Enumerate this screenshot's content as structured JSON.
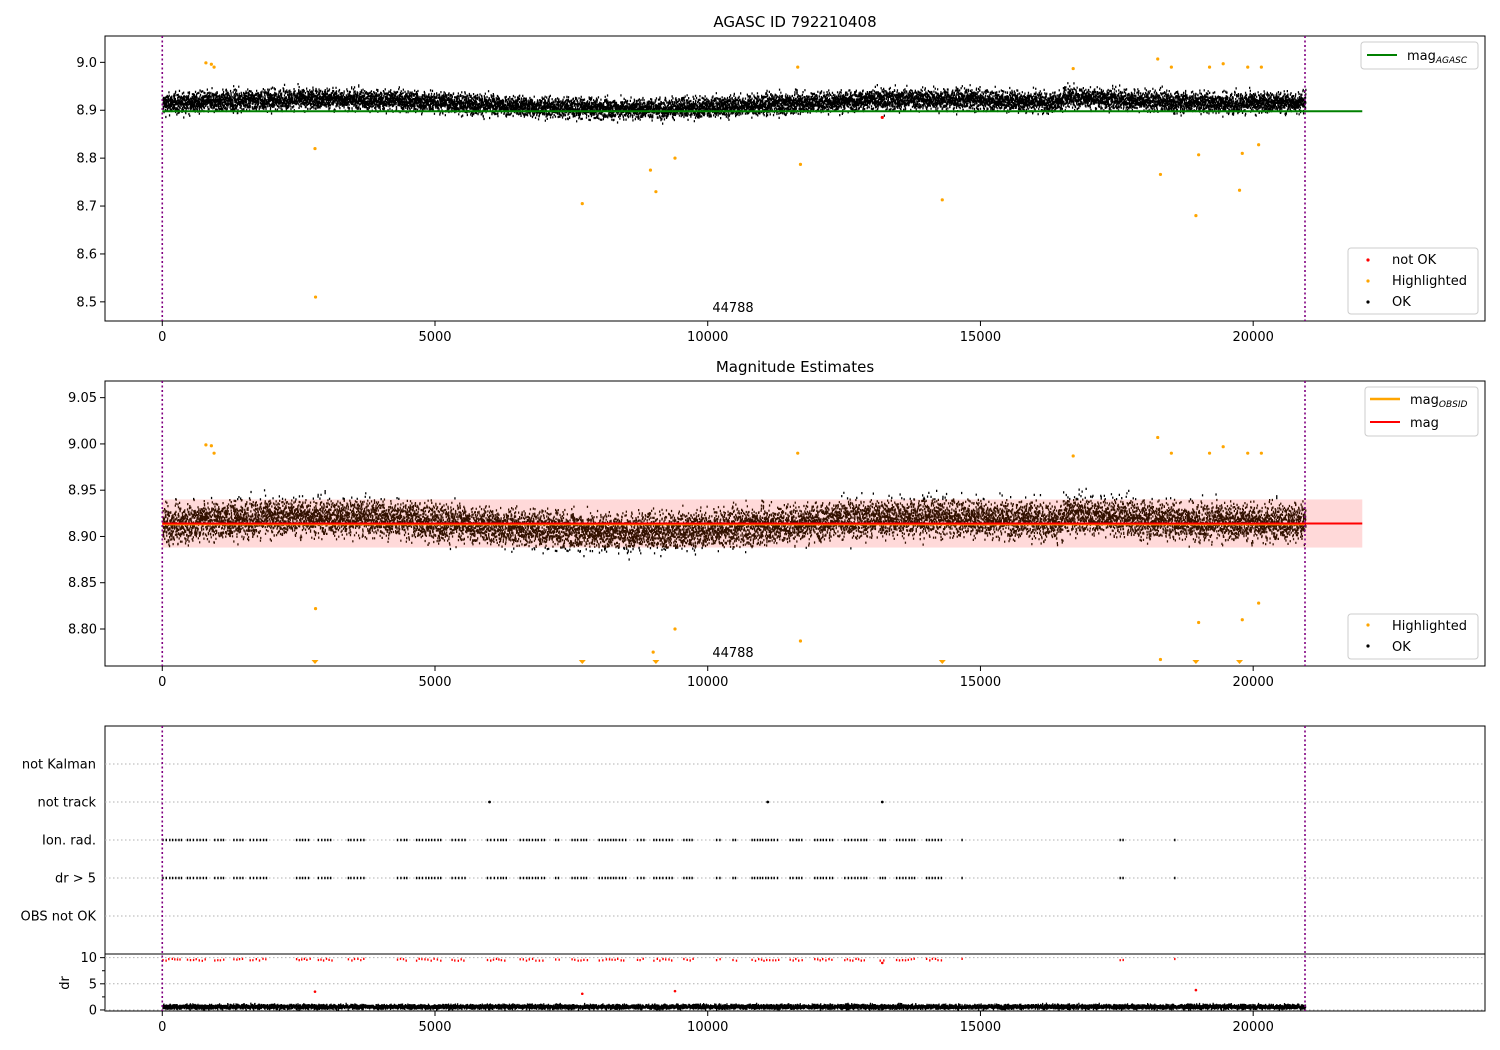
{
  "chart_data": [
    {
      "type": "scatter",
      "title": "AGASC ID 792210408",
      "xlim": [
        -1050,
        24250
      ],
      "ylim": [
        8.46,
        9.055
      ],
      "x_ticks": [
        0,
        5000,
        10000,
        15000,
        20000
      ],
      "y_ticks": [
        8.5,
        8.6,
        8.7,
        8.8,
        8.9,
        9.0
      ],
      "y_tick_labels": [
        "8.5",
        "8.6",
        "8.7",
        "8.8",
        "8.9",
        "9.0"
      ],
      "vlines": [
        0,
        20950
      ],
      "annotation": "44788",
      "annotation_x": 10300,
      "reference_line": {
        "name": "mag_AGASC",
        "y": 8.898,
        "x_range": [
          0,
          22000
        ],
        "color": "#008000"
      },
      "ok_band": {
        "x_range": [
          0,
          20950
        ],
        "center": 8.913,
        "halfwidth": 0.03,
        "low_extent": 0.06,
        "high_extent": 0.065
      },
      "series": [
        {
          "name": "not OK",
          "color": "#ff0000",
          "x": [
            13200
          ],
          "y": [
            8.885
          ]
        },
        {
          "name": "Highlighted",
          "color": "#ffa500",
          "x": [
            800,
            900,
            950,
            2800,
            2810,
            7700,
            8950,
            9050,
            9400,
            11650,
            11700,
            14300,
            16700,
            18250,
            18300,
            18500,
            18950,
            19000,
            19200,
            19450,
            19750,
            19800,
            19900,
            20100,
            20150
          ],
          "y": [
            8.999,
            8.996,
            8.99,
            8.82,
            8.51,
            8.705,
            8.775,
            8.73,
            8.8,
            8.99,
            8.787,
            8.713,
            8.987,
            9.007,
            8.766,
            8.99,
            8.68,
            8.807,
            8.99,
            8.997,
            8.733,
            8.81,
            8.99,
            8.828,
            8.99
          ]
        },
        {
          "name": "OK",
          "color": "#000000",
          "x": [],
          "y": []
        }
      ],
      "legend_top": [
        "mag_AGASC"
      ],
      "legend_bottom": [
        "not OK",
        "Highlighted",
        "OK"
      ]
    },
    {
      "type": "scatter",
      "title": "Magnitude Estimates",
      "xlim": [
        -1050,
        24250
      ],
      "ylim": [
        8.76,
        9.068
      ],
      "x_ticks": [
        0,
        5000,
        10000,
        15000,
        20000
      ],
      "y_ticks": [
        8.8,
        8.85,
        8.9,
        8.95,
        9.0,
        9.05
      ],
      "y_tick_labels": [
        "8.80",
        "8.85",
        "8.90",
        "8.95",
        "9.00",
        "9.05"
      ],
      "vlines": [
        0,
        20950
      ],
      "annotation": "44788",
      "annotation_x": 10300,
      "mag_line": {
        "name": "mag",
        "y": 8.914,
        "x_range": [
          0,
          22000
        ],
        "color": "#ff0000"
      },
      "mag_band": {
        "y_range": [
          8.888,
          8.94
        ],
        "x_range": [
          0,
          22000
        ],
        "color": "#ffcccc"
      },
      "obsid_line": {
        "name": "mag_OBSID",
        "y": 8.913,
        "x_range": [
          0,
          20950
        ],
        "color": "#ffa500"
      },
      "series": [
        {
          "name": "Highlighted",
          "color": "#ffa500",
          "x": [
            800,
            900,
            950,
            2810,
            9000,
            9400,
            11700,
            11650,
            16700,
            18250,
            18300,
            18500,
            19000,
            19200,
            19450,
            19800,
            19900,
            20100,
            20150
          ],
          "y": [
            8.999,
            8.998,
            8.99,
            8.822,
            8.775,
            8.8,
            8.787,
            8.99,
            8.987,
            9.007,
            8.767,
            8.99,
            8.807,
            8.99,
            8.997,
            8.81,
            8.99,
            8.828,
            8.99
          ]
        },
        {
          "name": "OK",
          "color": "#000000",
          "x": [],
          "y": []
        }
      ],
      "below_range_markers_x": [
        2800,
        7700,
        9050,
        14300,
        18950,
        19750
      ],
      "legend_top": [
        "mag_OBSID",
        "mag"
      ],
      "legend_bottom": [
        "Highlighted",
        "OK"
      ]
    },
    {
      "type": "scatter",
      "xlim": [
        -1050,
        24250
      ],
      "x_ticks": [
        0,
        5000,
        10000,
        15000,
        20000
      ],
      "vlines": [
        0,
        20950
      ],
      "flag_labels": [
        "not Kalman",
        "not track",
        "Ion. rad.",
        "dr > 5",
        "OBS not OK"
      ],
      "not_track_x": [
        6000,
        11100,
        13200
      ],
      "flag_clusters_x": [
        [
          0,
          350
        ],
        [
          450,
          800
        ],
        [
          950,
          1150
        ],
        [
          1300,
          1500
        ],
        [
          1600,
          1950
        ],
        [
          2450,
          2700
        ],
        [
          2850,
          3100
        ],
        [
          3400,
          3700
        ],
        [
          4300,
          4500
        ],
        [
          4650,
          5100
        ],
        [
          5300,
          5550
        ],
        [
          5950,
          6300
        ],
        [
          6550,
          7000
        ],
        [
          7200,
          7300
        ],
        [
          7500,
          7800
        ],
        [
          8000,
          8500
        ],
        [
          8700,
          8850
        ],
        [
          9000,
          9350
        ],
        [
          9550,
          9750
        ],
        [
          10150,
          10250
        ],
        [
          10450,
          10550
        ],
        [
          10800,
          11300
        ],
        [
          11500,
          11750
        ],
        [
          11950,
          12300
        ],
        [
          12500,
          12900
        ],
        [
          13150,
          13250
        ],
        [
          13450,
          13800
        ],
        [
          14000,
          14300
        ],
        [
          14650,
          14700
        ],
        [
          17550,
          17650
        ],
        [
          18550,
          18600
        ]
      ],
      "dr_label": "dr",
      "dr_ylim": [
        -0.2,
        10.7
      ],
      "dr_ticks": [
        0,
        5,
        10
      ],
      "dr_tick_labels": [
        "0",
        "5",
        "10"
      ],
      "dr_minor_ticks": [
        2.5,
        7.5
      ],
      "dr_red_outliers": {
        "x": [
          2800,
          7700,
          9400,
          18950,
          13200
        ],
        "y": [
          3.5,
          3.1,
          3.6,
          3.8,
          9.0
        ]
      }
    }
  ],
  "legend_labels": {
    "mag_AGASC_base": "mag",
    "mag_AGASC_sub": "AGASC",
    "mag_OBSID_base": "mag",
    "mag_OBSID_sub": "OBSID",
    "mag": "mag",
    "not_ok": "not OK",
    "highlighted": "Highlighted",
    "ok": "OK"
  }
}
